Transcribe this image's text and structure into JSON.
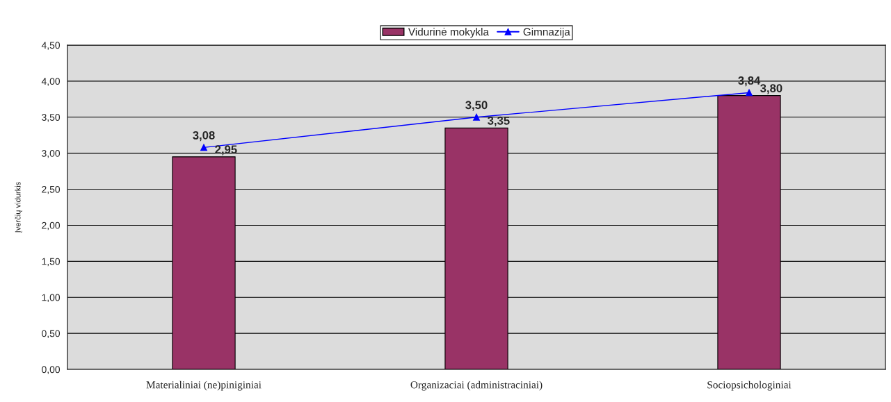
{
  "chart_data": {
    "type": "bar",
    "ylabel": "Įverčių vidurkis",
    "categories": [
      "Materialiniai (ne)piniginiai",
      "Organizaciai (administraciniai)",
      "Sociopsichologiniai"
    ],
    "series": [
      {
        "name": "Vidurinė mokykla",
        "color": "#993366",
        "values": [
          2.95,
          3.35,
          3.8
        ],
        "value_labels": [
          "2,95",
          "3,35",
          "3,80"
        ]
      },
      {
        "name": "Gimnazija",
        "type": "line",
        "color": "#0000ff",
        "marker": "triangle",
        "values": [
          3.08,
          3.5,
          3.84
        ],
        "value_labels": [
          "3,08",
          "3,50",
          "3,84"
        ]
      }
    ],
    "ylim": [
      0,
      4.5
    ],
    "yticks": [
      {
        "value": 0,
        "label": "0,00"
      },
      {
        "value": 0.5,
        "label": "0,50"
      },
      {
        "value": 1,
        "label": "1,00"
      },
      {
        "value": 1.5,
        "label": "1,50"
      },
      {
        "value": 2,
        "label": "2,00"
      },
      {
        "value": 2.5,
        "label": "2,50"
      },
      {
        "value": 3,
        "label": "3,00"
      },
      {
        "value": 3.5,
        "label": "3,50"
      },
      {
        "value": 4,
        "label": "4,00"
      },
      {
        "value": 4.5,
        "label": "4,50"
      }
    ],
    "grid": "y",
    "legend": "top"
  }
}
